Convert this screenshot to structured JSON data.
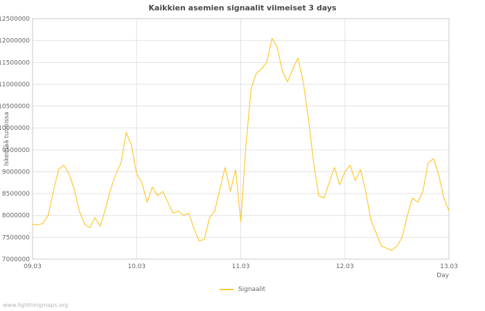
{
  "title": "Kaikkien asemien signaalit viimeiset 3 days",
  "watermark": "www.lightningmaps.org",
  "legend": {
    "label": "Signaalit",
    "color": "#fdc830"
  },
  "chart_data": {
    "type": "line",
    "title": "Kaikkien asemien signaalit viimeiset 3 days",
    "xlabel": "Day",
    "ylabel": "Iskemää tunnissa",
    "grid": true,
    "legend_position": "bottom",
    "xlim": [
      0,
      4
    ],
    "ylim": [
      7000000,
      12500000
    ],
    "xticks": [
      0,
      1,
      2,
      3,
      4
    ],
    "xtick_labels": [
      "09.03",
      "10.03",
      "11.03",
      "12.03",
      "13.03"
    ],
    "yticks": [
      7000000,
      7500000,
      8000000,
      8500000,
      9000000,
      9500000,
      10000000,
      10500000,
      11000000,
      11500000,
      12000000,
      12500000
    ],
    "ytick_labels": [
      "7000000",
      "7500000",
      "8000000",
      "8500000",
      "9000000",
      "9500000",
      "10000000",
      "10500000",
      "11000000",
      "11500000",
      "12000000",
      "12500000"
    ],
    "series": [
      {
        "name": "Signaalit",
        "color": "#fdc830",
        "x": [
          0,
          0.05,
          0.1,
          0.15,
          0.2,
          0.25,
          0.3,
          0.35,
          0.4,
          0.45,
          0.5,
          0.55,
          0.6,
          0.65,
          0.7,
          0.75,
          0.8,
          0.85,
          0.9,
          0.95,
          1,
          1.05,
          1.1,
          1.15,
          1.2,
          1.25,
          1.3,
          1.35,
          1.4,
          1.45,
          1.5,
          1.55,
          1.6,
          1.65,
          1.7,
          1.75,
          1.8,
          1.85,
          1.9,
          1.95,
          2,
          2.05,
          2.1,
          2.15,
          2.2,
          2.25,
          2.3,
          2.35,
          2.4,
          2.45,
          2.5,
          2.55,
          2.6,
          2.65,
          2.7,
          2.75,
          2.8,
          2.85,
          2.9,
          2.95,
          3,
          3.05,
          3.1,
          3.15,
          3.2,
          3.25,
          3.3,
          3.35,
          3.4,
          3.45,
          3.5,
          3.55,
          3.6,
          3.65,
          3.7,
          3.75,
          3.8,
          3.85,
          3.9,
          3.95,
          4
        ],
        "y": [
          7800000,
          7780000,
          7820000,
          8000000,
          8550000,
          9050000,
          9150000,
          8950000,
          8600000,
          8100000,
          7800000,
          7720000,
          7950000,
          7750000,
          8150000,
          8600000,
          8950000,
          9200000,
          9900000,
          9600000,
          8950000,
          8750000,
          8300000,
          8650000,
          8450000,
          8550000,
          8300000,
          8050000,
          8100000,
          8000000,
          8050000,
          7700000,
          7420000,
          7450000,
          7950000,
          8100000,
          8600000,
          9100000,
          8550000,
          9050000,
          7850000,
          9600000,
          10900000,
          11250000,
          11350000,
          11500000,
          12050000,
          11850000,
          11300000,
          11050000,
          11350000,
          11600000,
          11050000,
          10200000,
          9200000,
          8450000,
          8400000,
          8750000,
          9100000,
          8700000,
          9000000,
          9150000,
          8800000,
          9050000,
          8550000,
          7900000,
          7600000,
          7300000,
          7250000,
          7200000,
          7300000,
          7500000,
          8000000,
          8400000,
          8300000,
          8550000,
          9200000,
          9300000,
          8950000,
          8400000,
          8100000
        ]
      }
    ]
  }
}
